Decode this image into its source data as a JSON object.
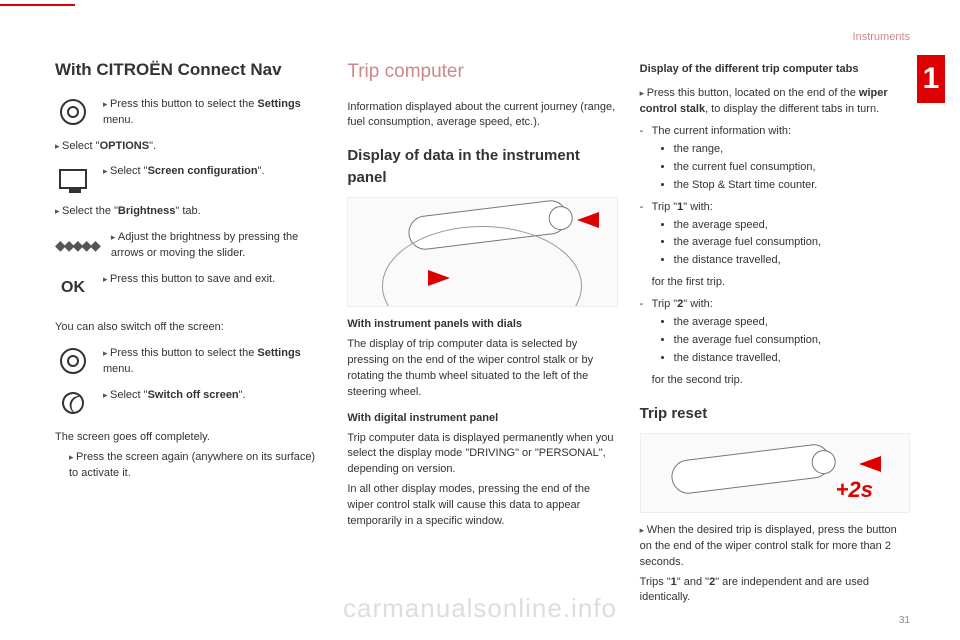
{
  "header": {
    "section": "Instruments",
    "chapter": "1",
    "pagenum": "31"
  },
  "col1": {
    "title": "With CITROËN Connect Nav",
    "row1": "Press this button to select the <b>Settings</b> menu.",
    "row2": "Select \"<b>OPTIONS</b>\".",
    "row3": "Select \"<b>Screen configuration</b>\".",
    "row4": "Select the \"<b>Brightness</b>\" tab.",
    "row5": "Adjust the brightness by pressing the arrows or moving the slider.",
    "row6": "Press this button to save and exit.",
    "switchoff_intro": "You can also switch off the screen:",
    "row7": "Press this button to select the <b>Settings</b> menu.",
    "row8": "Select \"<b>Switch off screen</b>\".",
    "off_text": "The screen goes off completely.",
    "row9": "Press the screen again (anywhere on its surface) to activate it."
  },
  "col2": {
    "title": "Trip computer",
    "intro": "Information displayed about the current journey (range, fuel consumption, average speed, etc.).",
    "subtitle": "Display of data in the instrument panel",
    "p1_title": "With instrument panels with dials",
    "p1": "The display of trip computer data is selected by pressing on the end of the wiper control stalk or by rotating the thumb wheel situated to the left of the steering wheel.",
    "p2_title": "With digital instrument panel",
    "p2a": "Trip computer data is displayed permanently when you select the display mode \"DRIVING\" or \"PERSONAL\", depending on version.",
    "p2b": "In all other display modes, pressing the end of the wiper control stalk will cause this data to appear temporarily in a specific window."
  },
  "col3": {
    "tabs_title": "Display of the different trip computer tabs",
    "press": "Press this button, located on the end of the <b>wiper control stalk</b>, to display the different tabs in turn.",
    "block1_intro": "The current information with:",
    "block1_items": [
      "the range,",
      "the current fuel consumption,",
      "the Stop & Start time counter."
    ],
    "block2_intro": "Trip \"<b>1</b>\" with:",
    "block2_items": [
      "the average speed,",
      "the average fuel consumption,",
      "the distance travelled,"
    ],
    "block2_tail": "for the first trip.",
    "block3_intro": "Trip \"<b>2</b>\" with:",
    "block3_items": [
      "the average speed,",
      "the average fuel consumption,",
      "the distance travelled,"
    ],
    "block3_tail": "for the second trip.",
    "reset_title": "Trip reset",
    "reset_text": "When the desired trip is displayed, press the button on the end of the wiper control stalk for more than 2 seconds.",
    "reset_tail": "Trips \"<b>1</b>\" and \"<b>2</b>\" are independent and are used identically.",
    "plus2s": "+2s"
  },
  "watermark": "carmanualsonline.info"
}
